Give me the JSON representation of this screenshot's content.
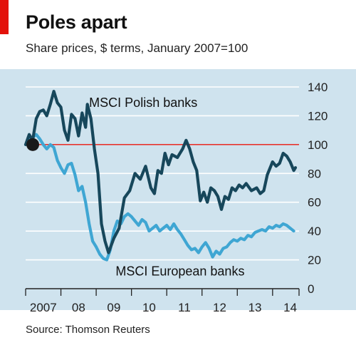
{
  "title": "Poles apart",
  "subtitle": "Share prices, $ terms, January 2007=100",
  "source": "Source: Thomson Reuters",
  "colors": {
    "accent_tab": "#e3120b",
    "background": "#cfe3ee",
    "polish_line": "#17475b",
    "european_line": "#3fa6d3",
    "reference_line": "#e3120b",
    "marker": "#1a1a1a",
    "grid": "#ffffff"
  },
  "chart_data": {
    "type": "line",
    "title": "Poles apart",
    "subtitle": "Share prices, $ terms, January 2007=100",
    "xlabel": "",
    "ylabel": "",
    "ylim": [
      0,
      140
    ],
    "yticks": [
      0,
      20,
      40,
      60,
      80,
      100,
      120,
      140
    ],
    "y_axis_position": "right",
    "grid": true,
    "xlim": [
      2007.0,
      2014.75
    ],
    "xticks": [
      2007,
      2008,
      2009,
      2010,
      2011,
      2012,
      2013,
      2014,
      2015
    ],
    "x_tick_labels": [
      {
        "label": "2007",
        "x": 2007.5
      },
      {
        "label": "08",
        "x": 2008.5
      },
      {
        "label": "09",
        "x": 2009.5
      },
      {
        "label": "10",
        "x": 2010.5
      },
      {
        "label": "11",
        "x": 2011.5
      },
      {
        "label": "12",
        "x": 2012.5
      },
      {
        "label": "13",
        "x": 2013.5
      },
      {
        "label": "14",
        "x": 2014.5
      }
    ],
    "reference_line": {
      "y": 100
    },
    "base_marker": {
      "x": 2007.0,
      "y": 100
    },
    "series": [
      {
        "name": "MSCI Polish banks",
        "label_anchor": {
          "x": 2008.8,
          "y": 129
        },
        "points": [
          [
            2007.0,
            100
          ],
          [
            2007.1,
            107
          ],
          [
            2007.2,
            103
          ],
          [
            2007.3,
            118
          ],
          [
            2007.4,
            123
          ],
          [
            2007.5,
            124
          ],
          [
            2007.6,
            120
          ],
          [
            2007.7,
            128
          ],
          [
            2007.8,
            137
          ],
          [
            2007.9,
            129
          ],
          [
            2008.0,
            126
          ],
          [
            2008.1,
            110
          ],
          [
            2008.2,
            103
          ],
          [
            2008.3,
            121
          ],
          [
            2008.4,
            118
          ],
          [
            2008.5,
            106
          ],
          [
            2008.6,
            122
          ],
          [
            2008.7,
            112
          ],
          [
            2008.75,
            128
          ],
          [
            2008.85,
            118
          ],
          [
            2008.95,
            97
          ],
          [
            2009.05,
            80
          ],
          [
            2009.15,
            45
          ],
          [
            2009.25,
            33
          ],
          [
            2009.35,
            25
          ],
          [
            2009.5,
            35
          ],
          [
            2009.65,
            42
          ],
          [
            2009.8,
            63
          ],
          [
            2009.95,
            68
          ],
          [
            2010.1,
            80
          ],
          [
            2010.25,
            76
          ],
          [
            2010.4,
            85
          ],
          [
            2010.55,
            70
          ],
          [
            2010.65,
            66
          ],
          [
            2010.75,
            82
          ],
          [
            2010.85,
            80
          ],
          [
            2010.95,
            94
          ],
          [
            2011.05,
            86
          ],
          [
            2011.15,
            93
          ],
          [
            2011.3,
            91
          ],
          [
            2011.45,
            97
          ],
          [
            2011.55,
            103
          ],
          [
            2011.65,
            97
          ],
          [
            2011.75,
            88
          ],
          [
            2011.85,
            82
          ],
          [
            2011.95,
            61
          ],
          [
            2012.05,
            67
          ],
          [
            2012.15,
            60
          ],
          [
            2012.25,
            70
          ],
          [
            2012.35,
            68
          ],
          [
            2012.45,
            64
          ],
          [
            2012.55,
            55
          ],
          [
            2012.65,
            64
          ],
          [
            2012.75,
            62
          ],
          [
            2012.85,
            70
          ],
          [
            2012.95,
            68
          ],
          [
            2013.05,
            72
          ],
          [
            2013.15,
            70
          ],
          [
            2013.25,
            73
          ],
          [
            2013.4,
            68
          ],
          [
            2013.55,
            70
          ],
          [
            2013.65,
            66
          ],
          [
            2013.75,
            68
          ],
          [
            2013.85,
            79
          ],
          [
            2014.0,
            88
          ],
          [
            2014.1,
            85
          ],
          [
            2014.2,
            87
          ],
          [
            2014.3,
            94
          ],
          [
            2014.4,
            92
          ],
          [
            2014.5,
            88
          ],
          [
            2014.6,
            82
          ],
          [
            2014.65,
            84
          ]
        ]
      },
      {
        "name": "MSCI European banks",
        "label_anchor": {
          "x": 2009.55,
          "y": 12
        },
        "points": [
          [
            2007.0,
            100
          ],
          [
            2007.1,
            103
          ],
          [
            2007.2,
            105
          ],
          [
            2007.3,
            107
          ],
          [
            2007.4,
            104
          ],
          [
            2007.5,
            100
          ],
          [
            2007.6,
            97
          ],
          [
            2007.7,
            100
          ],
          [
            2007.8,
            98
          ],
          [
            2007.9,
            89
          ],
          [
            2008.0,
            84
          ],
          [
            2008.1,
            80
          ],
          [
            2008.2,
            86
          ],
          [
            2008.3,
            87
          ],
          [
            2008.4,
            79
          ],
          [
            2008.5,
            68
          ],
          [
            2008.6,
            71
          ],
          [
            2008.7,
            60
          ],
          [
            2008.8,
            45
          ],
          [
            2008.9,
            33
          ],
          [
            2009.0,
            29
          ],
          [
            2009.1,
            24
          ],
          [
            2009.2,
            21
          ],
          [
            2009.3,
            20
          ],
          [
            2009.4,
            27
          ],
          [
            2009.5,
            40
          ],
          [
            2009.6,
            47
          ],
          [
            2009.7,
            45
          ],
          [
            2009.8,
            50
          ],
          [
            2009.9,
            52
          ],
          [
            2010.0,
            50
          ],
          [
            2010.1,
            47
          ],
          [
            2010.2,
            44
          ],
          [
            2010.3,
            48
          ],
          [
            2010.4,
            46
          ],
          [
            2010.5,
            40
          ],
          [
            2010.6,
            42
          ],
          [
            2010.7,
            44
          ],
          [
            2010.8,
            40
          ],
          [
            2010.9,
            42
          ],
          [
            2011.0,
            44
          ],
          [
            2011.1,
            41
          ],
          [
            2011.2,
            45
          ],
          [
            2011.3,
            41
          ],
          [
            2011.4,
            38
          ],
          [
            2011.5,
            34
          ],
          [
            2011.6,
            30
          ],
          [
            2011.7,
            27
          ],
          [
            2011.8,
            28
          ],
          [
            2011.9,
            25
          ],
          [
            2012.0,
            29
          ],
          [
            2012.1,
            32
          ],
          [
            2012.2,
            28
          ],
          [
            2012.3,
            22
          ],
          [
            2012.4,
            26
          ],
          [
            2012.5,
            24
          ],
          [
            2012.6,
            28
          ],
          [
            2012.7,
            29
          ],
          [
            2012.8,
            32
          ],
          [
            2012.9,
            34
          ],
          [
            2013.0,
            33
          ],
          [
            2013.1,
            35
          ],
          [
            2013.2,
            34
          ],
          [
            2013.3,
            37
          ],
          [
            2013.4,
            36
          ],
          [
            2013.5,
            39
          ],
          [
            2013.6,
            40
          ],
          [
            2013.7,
            41
          ],
          [
            2013.8,
            40
          ],
          [
            2013.9,
            43
          ],
          [
            2014.0,
            42
          ],
          [
            2014.1,
            44
          ],
          [
            2014.2,
            43
          ],
          [
            2014.3,
            45
          ],
          [
            2014.4,
            44
          ],
          [
            2014.5,
            42
          ],
          [
            2014.6,
            40
          ]
        ]
      }
    ]
  }
}
